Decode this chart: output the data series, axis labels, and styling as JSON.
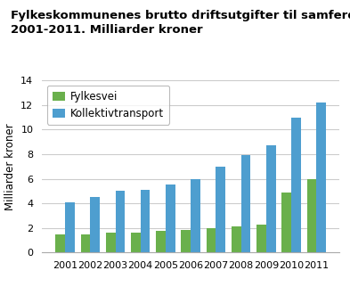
{
  "title_line1": "Fylkeskommunenes brutto driftsutgifter til samferdselsformål.",
  "title_line2": "2001-2011. Milliarder kroner",
  "ylabel": "Milliarder kroner",
  "years": [
    2001,
    2002,
    2003,
    2004,
    2005,
    2006,
    2007,
    2008,
    2009,
    2010,
    2011
  ],
  "fylkesvei": [
    1.5,
    1.5,
    1.6,
    1.65,
    1.75,
    1.85,
    1.95,
    2.1,
    2.3,
    4.9,
    6.0
  ],
  "kollektivtransport": [
    4.1,
    4.5,
    5.0,
    5.1,
    5.5,
    5.95,
    7.0,
    7.95,
    8.75,
    11.0,
    12.2
  ],
  "color_fylkesvei": "#6ab04c",
  "color_kollektiv": "#4e9ecf",
  "ylim": [
    0,
    14
  ],
  "yticks": [
    0,
    2,
    4,
    6,
    8,
    10,
    12,
    14
  ],
  "legend_labels": [
    "Fylkesvei",
    "Kollektivtransport"
  ],
  "bar_width": 0.38,
  "background_color": "#ffffff",
  "grid_color": "#cccccc",
  "title_fontsize": 9.5,
  "label_fontsize": 8.5,
  "tick_fontsize": 8
}
